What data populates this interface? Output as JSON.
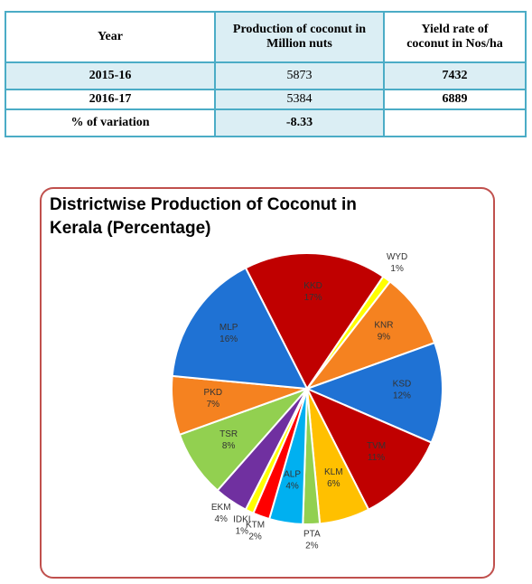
{
  "table": {
    "header": [
      "Year",
      "Production of coconut in Million nuts",
      "Yield rate of coconut in Nos/ha"
    ],
    "rows": [
      [
        "2015-16",
        "5873",
        "7432"
      ],
      [
        "2016-17",
        "5384",
        "6889"
      ],
      [
        "% of variation",
        "-8.33"
      ]
    ]
  },
  "chart_data": {
    "type": "pie",
    "title": "Districtwise  Production of Coconut in Kerala (Percentage)",
    "categories": [
      "KKD",
      "WYD",
      "KNR",
      "KSD",
      "TVM",
      "KLM",
      "PTA",
      "ALP",
      "KTM",
      "IDKI",
      "EKM",
      "TSR",
      "PKD",
      "MLP"
    ],
    "values": [
      17,
      1,
      9,
      12,
      11,
      6,
      2,
      4,
      2,
      1,
      4,
      8,
      7,
      16
    ],
    "value_labels": [
      "17%",
      "1%",
      "9%",
      "12%",
      "11%",
      "6%",
      "2%",
      "4%",
      "2%",
      "1%",
      "4%",
      "8%",
      "7%",
      "16%"
    ],
    "colors": [
      "#c00000",
      "#ffff00",
      "#f58220",
      "#1f72d4",
      "#c00000",
      "#ffc000",
      "#92d050",
      "#00b0f0",
      "#ff0000",
      "#ffff00",
      "#7030a0",
      "#92d050",
      "#f58220",
      "#1f72d4"
    ]
  }
}
